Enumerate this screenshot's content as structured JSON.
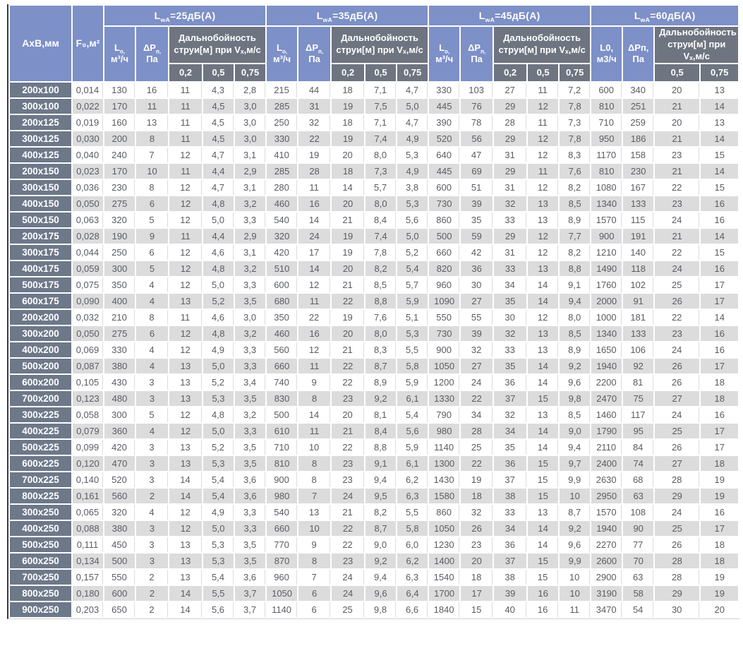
{
  "colors": {
    "header_blue": "#7d90c7",
    "header_gray": "#6e7480",
    "row_label_gray": "#6d7889",
    "alt_row_gray": "#dcdcdc",
    "body_text": "#595c63",
    "left_border_dark": "#333945"
  },
  "table": {
    "size_header": "АхВ,мм",
    "area_header": "F₀,м²",
    "groups": [
      {
        "title": {
          "base": "L",
          "sub": "wA",
          "rest": "=25дБ(А)"
        },
        "flow": {
          "base": "L",
          "sub": "о,",
          "line2": "м³/ч"
        },
        "pressure": {
          "base": "ΔP",
          "sub": "п,",
          "line2": "Па"
        },
        "jet": "Дальнобойность струи[м] при Vₓ,м/с",
        "velocities": [
          "0,2",
          "0,5",
          "0,75"
        ]
      },
      {
        "title": {
          "base": "L",
          "sub": "wA",
          "rest": "=35дБ(А)"
        },
        "flow": {
          "base": "L",
          "sub": "о,",
          "line2": "м³/ч"
        },
        "pressure": {
          "base": "ΔP",
          "sub": "п,",
          "line2": "Па"
        },
        "jet": "Дальнобойность струи[м] при Vₓ,м/с",
        "velocities": [
          "0,2",
          "0,5",
          "0,75"
        ]
      },
      {
        "title": {
          "base": "L",
          "sub": "wA",
          "rest": "=45дБ(А)"
        },
        "flow": {
          "base": "L",
          "sub": "о,",
          "line2": "м³/ч"
        },
        "pressure": {
          "base": "ΔP",
          "sub": "п,",
          "line2": "Па"
        },
        "jet": "Дальнобойность струи[м] при Vₓ,м/с",
        "velocities": [
          "0,2",
          "0,5",
          "0,75"
        ]
      },
      {
        "title": {
          "base": "L",
          "sub": "wA",
          "rest": "=60дБ(А)"
        },
        "flow": {
          "base": "L0,",
          "sub": "",
          "line2": "м3/ч"
        },
        "pressure": {
          "base": "ΔPп,",
          "sub": "",
          "line2": "Па"
        },
        "jet": "Дальнобойность струи[м] при Vₓ,м/с",
        "velocities": [
          "0,5",
          "0,75"
        ]
      }
    ],
    "rows": [
      {
        "size": "200x100",
        "f0": "0,014",
        "values": [
          "130",
          "16",
          "11",
          "4,3",
          "2,8",
          "215",
          "44",
          "18",
          "7,1",
          "4,7",
          "330",
          "103",
          "27",
          "11",
          "7,2",
          "600",
          "340",
          "20",
          "13"
        ]
      },
      {
        "size": "300x100",
        "f0": "0,022",
        "values": [
          "170",
          "11",
          "11",
          "4,5",
          "3,0",
          "285",
          "31",
          "19",
          "7,5",
          "5,0",
          "445",
          "76",
          "29",
          "12",
          "7,8",
          "810",
          "251",
          "21",
          "14"
        ]
      },
      {
        "size": "200x125",
        "f0": "0,019",
        "values": [
          "160",
          "13",
          "11",
          "4,5",
          "3,0",
          "250",
          "32",
          "18",
          "7,1",
          "4,7",
          "390",
          "78",
          "28",
          "11",
          "7,3",
          "710",
          "259",
          "20",
          "13"
        ]
      },
      {
        "size": "300x125",
        "f0": "0,030",
        "values": [
          "200",
          "8",
          "11",
          "4,5",
          "3,0",
          "330",
          "22",
          "19",
          "7,4",
          "4,9",
          "520",
          "56",
          "29",
          "12",
          "7,8",
          "950",
          "186",
          "21",
          "14"
        ]
      },
      {
        "size": "400x125",
        "f0": "0,040",
        "values": [
          "240",
          "7",
          "12",
          "4,7",
          "3,1",
          "410",
          "19",
          "20",
          "8,0",
          "5,3",
          "640",
          "47",
          "31",
          "12",
          "8,3",
          "1170",
          "158",
          "23",
          "15"
        ]
      },
      {
        "size": "200x150",
        "f0": "0,023",
        "values": [
          "170",
          "10",
          "11",
          "4,4",
          "2,9",
          "285",
          "28",
          "18",
          "7,3",
          "4,9",
          "445",
          "69",
          "29",
          "11",
          "7,6",
          "810",
          "230",
          "21",
          "14"
        ]
      },
      {
        "size": "300x150",
        "f0": "0,036",
        "values": [
          "230",
          "8",
          "12",
          "4,7",
          "3,1",
          "280",
          "11",
          "14",
          "5,7",
          "3,8",
          "600",
          "51",
          "31",
          "12",
          "8,2",
          "1080",
          "167",
          "22",
          "15"
        ]
      },
      {
        "size": "400x150",
        "f0": "0,050",
        "values": [
          "275",
          "6",
          "12",
          "4,8",
          "3,2",
          "460",
          "16",
          "20",
          "8,0",
          "5,3",
          "730",
          "39",
          "32",
          "13",
          "8,5",
          "1340",
          "133",
          "23",
          "16"
        ]
      },
      {
        "size": "500x150",
        "f0": "0,063",
        "values": [
          "320",
          "5",
          "12",
          "5,0",
          "3,3",
          "540",
          "14",
          "21",
          "8,4",
          "5,6",
          "860",
          "35",
          "33",
          "13",
          "8,9",
          "1570",
          "115",
          "24",
          "16"
        ]
      },
      {
        "size": "200x175",
        "f0": "0,028",
        "values": [
          "190",
          "9",
          "11",
          "4,4",
          "2,9",
          "320",
          "24",
          "19",
          "7,4",
          "5,0",
          "500",
          "59",
          "29",
          "12",
          "7,7",
          "900",
          "191",
          "21",
          "14"
        ]
      },
      {
        "size": "300x175",
        "f0": "0,044",
        "values": [
          "250",
          "6",
          "12",
          "4,6",
          "3,1",
          "420",
          "17",
          "19",
          "7,8",
          "5,2",
          "660",
          "42",
          "31",
          "12",
          "8,2",
          "1210",
          "140",
          "22",
          "15"
        ]
      },
      {
        "size": "400x175",
        "f0": "0,059",
        "values": [
          "300",
          "5",
          "12",
          "4,8",
          "3,2",
          "510",
          "14",
          "20",
          "8,2",
          "5,4",
          "820",
          "36",
          "33",
          "13",
          "8,8",
          "1490",
          "118",
          "24",
          "16"
        ]
      },
      {
        "size": "500x175",
        "f0": "0,075",
        "values": [
          "350",
          "4",
          "12",
          "5,0",
          "3,3",
          "600",
          "12",
          "21",
          "8,5",
          "5,7",
          "960",
          "30",
          "34",
          "14",
          "9,1",
          "1760",
          "102",
          "25",
          "17"
        ]
      },
      {
        "size": "600x175",
        "f0": "0,090",
        "values": [
          "400",
          "4",
          "13",
          "5,2",
          "3,5",
          "680",
          "11",
          "22",
          "8,8",
          "5,9",
          "1090",
          "27",
          "35",
          "14",
          "9,4",
          "2000",
          "91",
          "26",
          "17"
        ]
      },
      {
        "size": "200x200",
        "f0": "0,032",
        "values": [
          "210",
          "8",
          "11",
          "4,6",
          "3,0",
          "350",
          "22",
          "19",
          "7,6",
          "5,1",
          "550",
          "55",
          "30",
          "12",
          "8,0",
          "1000",
          "181",
          "22",
          "14"
        ]
      },
      {
        "size": "300x200",
        "f0": "0,050",
        "values": [
          "275",
          "6",
          "12",
          "4,8",
          "3,2",
          "460",
          "16",
          "20",
          "8,0",
          "5,3",
          "730",
          "39",
          "32",
          "13",
          "8,5",
          "1340",
          "133",
          "23",
          "16"
        ]
      },
      {
        "size": "400x200",
        "f0": "0,069",
        "values": [
          "330",
          "4",
          "12",
          "4,9",
          "3,3",
          "560",
          "12",
          "21",
          "8,3",
          "5,5",
          "900",
          "32",
          "33",
          "13",
          "8,9",
          "1650",
          "106",
          "24",
          "16"
        ]
      },
      {
        "size": "500x200",
        "f0": "0,087",
        "values": [
          "380",
          "4",
          "13",
          "5,0",
          "3,3",
          "660",
          "11",
          "22",
          "8,7",
          "5,8",
          "1050",
          "27",
          "35",
          "14",
          "9,2",
          "1940",
          "92",
          "26",
          "17"
        ]
      },
      {
        "size": "600x200",
        "f0": "0,105",
        "values": [
          "430",
          "3",
          "13",
          "5,2",
          "3,4",
          "740",
          "9",
          "22",
          "8,9",
          "5,9",
          "1200",
          "24",
          "36",
          "14",
          "9,6",
          "2200",
          "81",
          "26",
          "18"
        ]
      },
      {
        "size": "700x200",
        "f0": "0,123",
        "values": [
          "480",
          "3",
          "13",
          "5,3",
          "3,5",
          "830",
          "8",
          "23",
          "9,2",
          "6,1",
          "1330",
          "22",
          "37",
          "15",
          "9,8",
          "2470",
          "75",
          "27",
          "18"
        ]
      },
      {
        "size": "300x225",
        "f0": "0,058",
        "values": [
          "300",
          "5",
          "12",
          "4,8",
          "3,2",
          "500",
          "14",
          "20",
          "8,1",
          "5,4",
          "790",
          "34",
          "32",
          "13",
          "8,5",
          "1460",
          "117",
          "24",
          "16"
        ]
      },
      {
        "size": "400x225",
        "f0": "0,079",
        "values": [
          "360",
          "4",
          "12",
          "5,0",
          "3,3",
          "610",
          "11",
          "21",
          "8,4",
          "5,6",
          "980",
          "28",
          "34",
          "14",
          "9,0",
          "1790",
          "95",
          "25",
          "17"
        ]
      },
      {
        "size": "500x225",
        "f0": "0,099",
        "values": [
          "420",
          "3",
          "13",
          "5,2",
          "3,5",
          "710",
          "10",
          "22",
          "8,8",
          "5,9",
          "1140",
          "25",
          "35",
          "14",
          "9,4",
          "2110",
          "84",
          "26",
          "17"
        ]
      },
      {
        "size": "600x225",
        "f0": "0,120",
        "values": [
          "470",
          "3",
          "13",
          "5,3",
          "3,5",
          "810",
          "8",
          "23",
          "9,1",
          "6,1",
          "1300",
          "22",
          "36",
          "15",
          "9,7",
          "2400",
          "74",
          "27",
          "18"
        ]
      },
      {
        "size": "700x225",
        "f0": "0,140",
        "values": [
          "520",
          "3",
          "14",
          "5,4",
          "3,6",
          "900",
          "8",
          "23",
          "9,4",
          "6,2",
          "1430",
          "19",
          "37",
          "15",
          "9,9",
          "2630",
          "68",
          "28",
          "19"
        ]
      },
      {
        "size": "800x225",
        "f0": "0,161",
        "values": [
          "560",
          "2",
          "14",
          "5,4",
          "3,6",
          "980",
          "7",
          "24",
          "9,5",
          "6,3",
          "1580",
          "18",
          "38",
          "15",
          "10",
          "2950",
          "63",
          "29",
          "19"
        ]
      },
      {
        "size": "300x250",
        "f0": "0,065",
        "values": [
          "320",
          "4",
          "12",
          "4,9",
          "3,3",
          "540",
          "13",
          "21",
          "8,2",
          "5,5",
          "860",
          "32",
          "33",
          "13",
          "8,7",
          "1570",
          "108",
          "24",
          "16"
        ]
      },
      {
        "size": "400x250",
        "f0": "0,088",
        "values": [
          "380",
          "3",
          "12",
          "5,0",
          "3,3",
          "660",
          "10",
          "22",
          "8,7",
          "5,8",
          "1050",
          "26",
          "34",
          "14",
          "9,2",
          "1940",
          "90",
          "25",
          "17"
        ]
      },
      {
        "size": "500x250",
        "f0": "0,111",
        "values": [
          "450",
          "3",
          "13",
          "5,3",
          "3,5",
          "770",
          "9",
          "22",
          "9,0",
          "6,0",
          "1230",
          "23",
          "36",
          "14",
          "9,6",
          "2270",
          "77",
          "26",
          "18"
        ]
      },
      {
        "size": "600x250",
        "f0": "0,134",
        "values": [
          "500",
          "3",
          "13",
          "5,3",
          "3,5",
          "870",
          "8",
          "23",
          "9,2",
          "6,2",
          "1400",
          "20",
          "37",
          "15",
          "9,9",
          "2600",
          "70",
          "28",
          "18"
        ]
      },
      {
        "size": "700x250",
        "f0": "0,157",
        "values": [
          "550",
          "2",
          "13",
          "5,4",
          "3,6",
          "960",
          "7",
          "24",
          "9,4",
          "6,3",
          "1540",
          "18",
          "38",
          "15",
          "10",
          "2900",
          "63",
          "28",
          "19"
        ]
      },
      {
        "size": "800x250",
        "f0": "0,180",
        "values": [
          "600",
          "2",
          "14",
          "5,5",
          "3,7",
          "1050",
          "6",
          "24",
          "9,6",
          "6,4",
          "1700",
          "17",
          "39",
          "16",
          "10",
          "3190",
          "58",
          "29",
          "19"
        ]
      },
      {
        "size": "900x250",
        "f0": "0,203",
        "values": [
          "650",
          "2",
          "14",
          "5,6",
          "3,7",
          "1140",
          "6",
          "25",
          "9,8",
          "6,6",
          "1840",
          "15",
          "40",
          "16",
          "11",
          "3470",
          "54",
          "30",
          "20"
        ]
      }
    ]
  }
}
